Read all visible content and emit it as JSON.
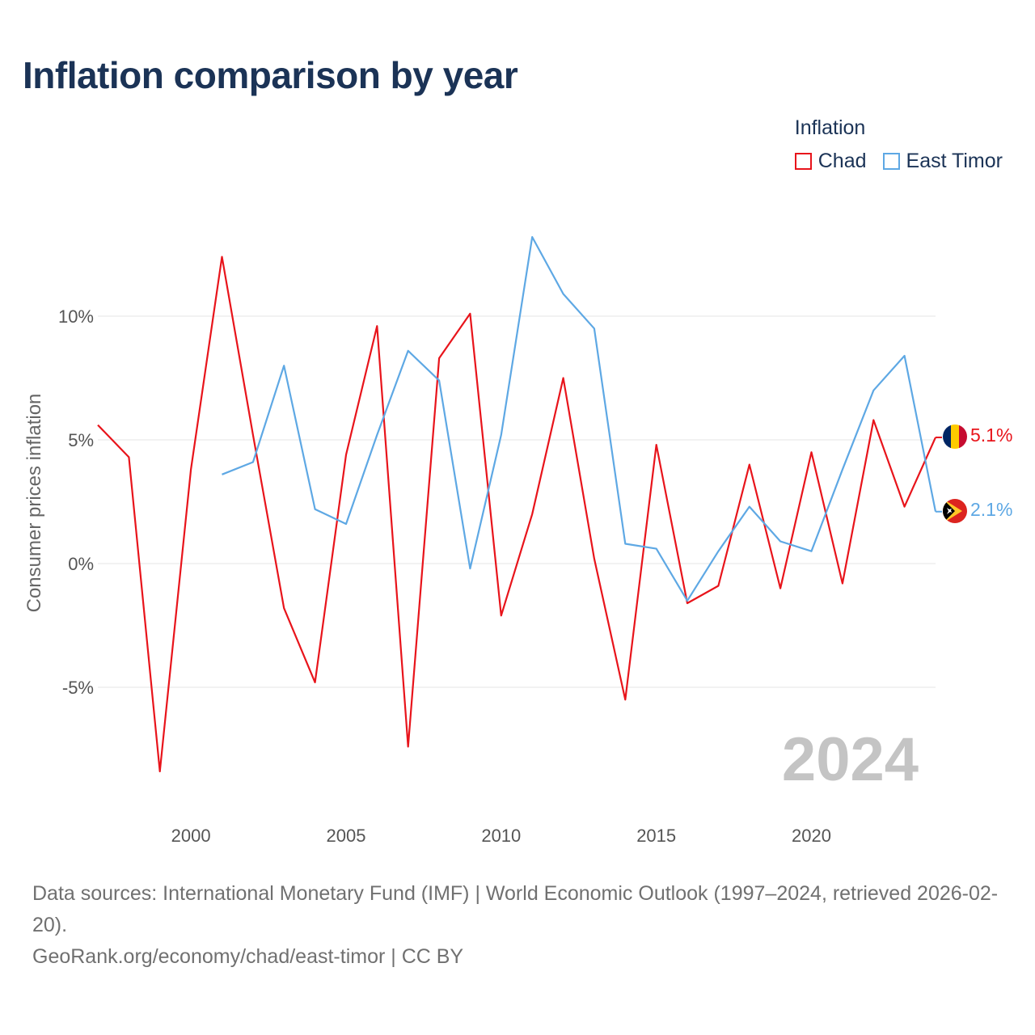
{
  "header": {
    "title": "Inflation comparison by year"
  },
  "legend": {
    "title": "Inflation",
    "items": [
      {
        "label": "Chad",
        "color": "#e8141b"
      },
      {
        "label": "East Timor",
        "color": "#5ea8e4"
      }
    ]
  },
  "chart_data": {
    "type": "line",
    "title": "Inflation comparison by year",
    "xlabel": "",
    "ylabel": "Consumer prices inflation",
    "xlim": [
      1997,
      2024
    ],
    "ylim": [
      -10,
      15
    ],
    "x_ticks": [
      2000,
      2005,
      2010,
      2015,
      2020
    ],
    "y_ticks": [
      {
        "value": 10,
        "label": "10%"
      },
      {
        "value": 5,
        "label": "5%"
      },
      {
        "value": 0,
        "label": "0%"
      },
      {
        "value": -5,
        "label": "-5%"
      }
    ],
    "grid": "horizontal",
    "year_watermark": "2024",
    "series": [
      {
        "name": "Chad",
        "color": "#e8141b",
        "flag": "chad-flag",
        "end_label": "5.1%",
        "x": [
          1997,
          1998,
          1999,
          2000,
          2001,
          2002,
          2003,
          2004,
          2005,
          2006,
          2007,
          2008,
          2009,
          2010,
          2011,
          2012,
          2013,
          2014,
          2015,
          2016,
          2017,
          2018,
          2019,
          2020,
          2021,
          2022,
          2023,
          2024
        ],
        "values": [
          5.6,
          4.3,
          -8.4,
          3.8,
          12.4,
          5.2,
          -1.8,
          -4.8,
          4.4,
          9.6,
          -7.4,
          8.3,
          10.1,
          -2.1,
          2.0,
          7.5,
          0.2,
          -5.5,
          4.8,
          -1.6,
          -0.9,
          4.0,
          -1.0,
          4.5,
          -0.8,
          5.8,
          2.3,
          5.1
        ]
      },
      {
        "name": "East Timor",
        "color": "#5ea8e4",
        "flag": "east-timor-flag",
        "end_label": "2.1%",
        "x": [
          2001,
          2002,
          2003,
          2004,
          2005,
          2006,
          2007,
          2008,
          2009,
          2010,
          2011,
          2012,
          2013,
          2014,
          2015,
          2016,
          2017,
          2018,
          2019,
          2020,
          2021,
          2022,
          2023,
          2024
        ],
        "values": [
          3.6,
          4.1,
          8.0,
          2.2,
          1.6,
          5.2,
          8.6,
          7.4,
          -0.2,
          5.2,
          13.2,
          10.9,
          9.5,
          0.8,
          0.6,
          -1.5,
          0.5,
          2.3,
          0.9,
          0.5,
          3.8,
          7.0,
          8.4,
          2.1
        ]
      }
    ]
  },
  "footer": {
    "sources": "Data sources: International Monetary Fund (IMF) | World Economic Outlook (1997–2024, retrieved 2026-02-20).",
    "credit": "GeoRank.org/economy/chad/east-timor | CC BY"
  }
}
